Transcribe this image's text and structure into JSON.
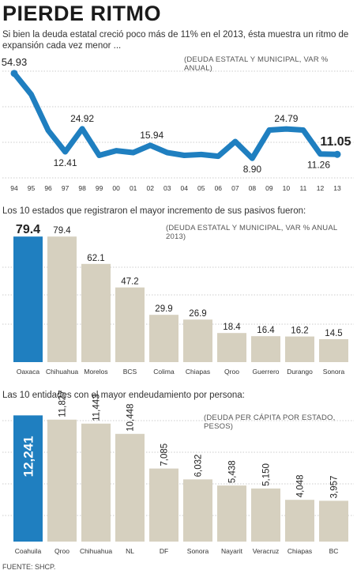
{
  "header": {
    "title": "PIERDE RITMO",
    "subtitle": "Si bien la deuda estatal creció poco más de 11% en el 2013, ésta muestra  un ritmo de expansión cada vez menor ..."
  },
  "colors": {
    "highlight": "#1f7fc0",
    "bar": "#d6d0bf",
    "line": "#1f7fc0",
    "grid": "#999999"
  },
  "chart_data": [
    {
      "type": "line",
      "unit_label": "(DEUDA ESTATAL Y MUNICIPAL, VAR % ANUAL)",
      "categories": [
        "94",
        "95",
        "96",
        "97",
        "98",
        "99",
        "00",
        "01",
        "02",
        "03",
        "04",
        "05",
        "06",
        "07",
        "08",
        "09",
        "10",
        "11",
        "12",
        "13"
      ],
      "values": [
        54.93,
        43.5,
        24.0,
        12.41,
        24.92,
        10.5,
        13.0,
        12.0,
        15.94,
        12.0,
        10.5,
        11.0,
        10.0,
        18.0,
        8.9,
        24.2,
        24.79,
        24.2,
        11.26,
        11.05
      ],
      "labels": [
        {
          "index": 0,
          "text": "54.93"
        },
        {
          "index": 3,
          "text": "12.41"
        },
        {
          "index": 4,
          "text": "24.92"
        },
        {
          "index": 8,
          "text": "15.94"
        },
        {
          "index": 14,
          "text": "8.90"
        },
        {
          "index": 16,
          "text": "24.79"
        },
        {
          "index": 18,
          "text": "11.26"
        },
        {
          "index": 19,
          "text": "11.05"
        }
      ],
      "ylim": [
        0,
        60
      ]
    },
    {
      "type": "bar",
      "section_title": "Los 10 estados que registraron el mayor incremento de sus pasivos fueron:",
      "unit_label": "(DEUDA ESTATAL Y MUNICIPAL, VAR % ANUAL 2013)",
      "categories": [
        "Oaxaca",
        "Chihuahua",
        "Morelos",
        "BCS",
        "Colima",
        "Chiapas",
        "Qroo",
        "Guerrero",
        "Durango",
        "Sonora"
      ],
      "values": [
        79.4,
        79.4,
        62.1,
        47.2,
        29.9,
        26.9,
        18.4,
        16.4,
        16.2,
        14.5
      ],
      "value_labels": [
        "79.4",
        "79.4",
        "62.1",
        "47.2",
        "29.9",
        "26.9",
        "18.4",
        "16.4",
        "16.2",
        "14.5"
      ],
      "highlight_index": 0,
      "ylim": [
        0,
        80
      ]
    },
    {
      "type": "bar",
      "section_title": "Las 10 entidades con el mayor endeudamiento por persona:",
      "unit_label": "(DEUDA PER CÁPITA POR ESTADO, PESOS)",
      "categories": [
        "Coahuila",
        "Qroo",
        "Chihuahua",
        "NL",
        "DF",
        "Sonora",
        "Nayarit",
        "Veracruz",
        "Chiapas",
        "BC"
      ],
      "values": [
        12241,
        11827,
        11443,
        10448,
        7085,
        6032,
        5438,
        5150,
        4048,
        3957
      ],
      "value_labels": [
        "12,241",
        "11,827",
        "11,443",
        "10,448",
        "7,085",
        "6,032",
        "5,438",
        "5,150",
        "4,048",
        "3,957"
      ],
      "highlight_index": 0,
      "ylim": [
        0,
        12500
      ]
    }
  ],
  "footer": {
    "source": "FUENTE: SHCP."
  }
}
